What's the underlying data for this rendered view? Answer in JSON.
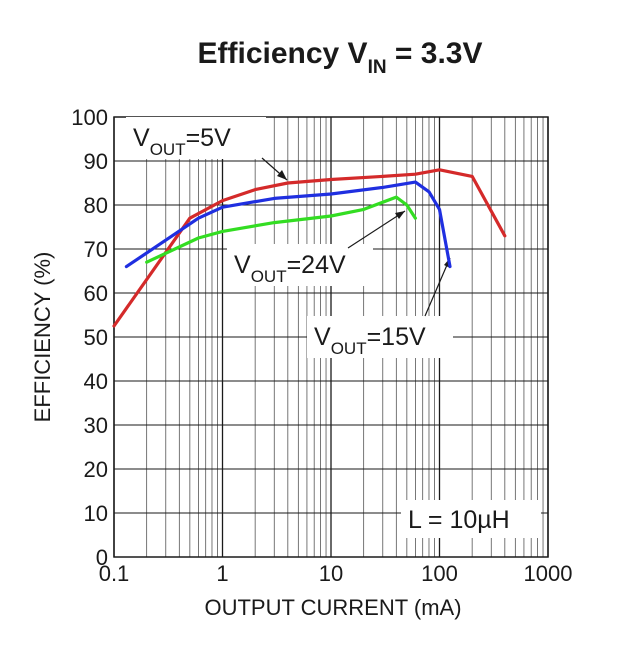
{
  "chart_data": {
    "type": "line",
    "title": {
      "prefix": "Efficiency V",
      "subscript": "IN",
      "suffix": " = 3.3V"
    },
    "xlabel": "OUTPUT CURRENT (mA)",
    "ylabel": "EFFICIENCY (%)",
    "x_scale": "log",
    "xlim": [
      0.1,
      1000
    ],
    "ylim": [
      0,
      100
    ],
    "x_ticks": [
      0.1,
      1,
      10,
      100,
      1000
    ],
    "x_tick_labels": [
      "0.1",
      "1",
      "10",
      "100",
      "1000"
    ],
    "y_ticks": [
      0,
      10,
      20,
      30,
      40,
      50,
      60,
      70,
      80,
      90,
      100
    ],
    "y_tick_labels": [
      "0",
      "10",
      "20",
      "30",
      "40",
      "50",
      "60",
      "70",
      "80",
      "90",
      "100"
    ],
    "grid": true,
    "series": [
      {
        "color": "#d42a2a",
        "points": [
          [
            0.1,
            52.5
          ],
          [
            0.5,
            77
          ],
          [
            1,
            81
          ],
          [
            2,
            83.5
          ],
          [
            4,
            85
          ],
          [
            10,
            85.8
          ],
          [
            30,
            86.5
          ],
          [
            60,
            87
          ],
          [
            100,
            88
          ],
          [
            200,
            86.5
          ],
          [
            400,
            73
          ]
        ]
      },
      {
        "color": "#1f2fe0",
        "points": [
          [
            0.13,
            66
          ],
          [
            0.6,
            77
          ],
          [
            1,
            79.5
          ],
          [
            3,
            81.5
          ],
          [
            10,
            82.5
          ],
          [
            30,
            84
          ],
          [
            60,
            85.2
          ],
          [
            80,
            83
          ],
          [
            100,
            79
          ],
          [
            125,
            66
          ]
        ]
      },
      {
        "color": "#33dd22",
        "points": [
          [
            0.2,
            67
          ],
          [
            0.6,
            72.5
          ],
          [
            1,
            74
          ],
          [
            3,
            76
          ],
          [
            10,
            77.5
          ],
          [
            20,
            79
          ],
          [
            40,
            81.8
          ],
          [
            50,
            80
          ],
          [
            60,
            77
          ]
        ]
      }
    ],
    "annotations": [
      {
        "prefix": "V",
        "subscript": "OUT",
        "suffix": "=5V"
      },
      {
        "prefix": "V",
        "subscript": "OUT",
        "suffix": "=24V"
      },
      {
        "prefix": "V",
        "subscript": "OUT",
        "suffix": "=15V"
      },
      {
        "text": "L = 10µH"
      }
    ]
  }
}
